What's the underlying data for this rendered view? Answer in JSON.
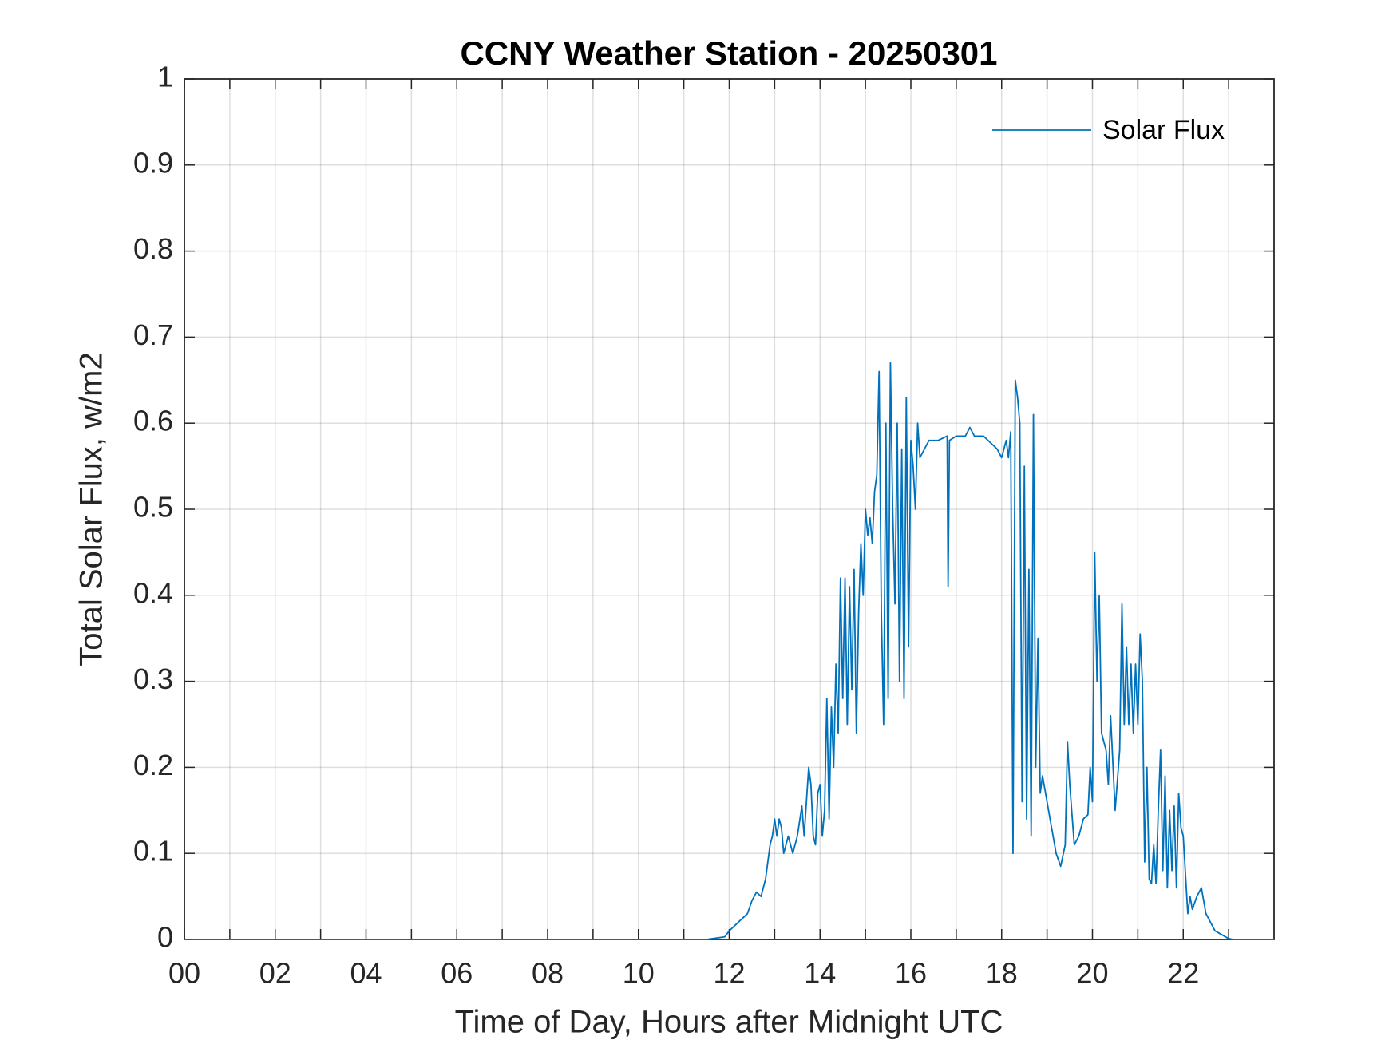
{
  "chart_data": {
    "type": "line",
    "title": "CCNY Weather Station - 20250301",
    "x_label": "Time of Day, Hours after Midnight UTC",
    "y_label": "Total Solar Flux, w/m2",
    "xlim": [
      0,
      24
    ],
    "ylim": [
      0,
      1
    ],
    "xticks": [
      {
        "value": 0,
        "label": "00"
      },
      {
        "value": 2,
        "label": "02"
      },
      {
        "value": 4,
        "label": "04"
      },
      {
        "value": 6,
        "label": "06"
      },
      {
        "value": 8,
        "label": "08"
      },
      {
        "value": 10,
        "label": "10"
      },
      {
        "value": 12,
        "label": "12"
      },
      {
        "value": 14,
        "label": "14"
      },
      {
        "value": 16,
        "label": "16"
      },
      {
        "value": 18,
        "label": "18"
      },
      {
        "value": 20,
        "label": "20"
      },
      {
        "value": 22,
        "label": "22"
      }
    ],
    "xminorticks": [
      1,
      3,
      5,
      7,
      9,
      11,
      13,
      15,
      17,
      19,
      21,
      23
    ],
    "yticks": [
      0,
      0.1,
      0.2,
      0.3,
      0.4,
      0.5,
      0.6,
      0.7,
      0.8,
      0.9,
      1
    ],
    "grid": true,
    "legend_position": "upper right",
    "x": [
      0,
      11.5,
      11.9,
      12.0,
      12.2,
      12.4,
      12.5,
      12.6,
      12.7,
      12.8,
      12.9,
      12.95,
      13.0,
      13.05,
      13.1,
      13.15,
      13.2,
      13.3,
      13.4,
      13.5,
      13.6,
      13.65,
      13.75,
      13.8,
      13.85,
      13.9,
      13.95,
      14.0,
      14.05,
      14.1,
      14.15,
      14.2,
      14.25,
      14.3,
      14.35,
      14.4,
      14.45,
      14.5,
      14.55,
      14.6,
      14.65,
      14.7,
      14.75,
      14.8,
      14.85,
      14.9,
      14.95,
      15.0,
      15.05,
      15.1,
      15.15,
      15.2,
      15.25,
      15.3,
      15.35,
      15.4,
      15.45,
      15.5,
      15.55,
      15.6,
      15.65,
      15.7,
      15.75,
      15.8,
      15.85,
      15.9,
      15.95,
      16.0,
      16.05,
      16.1,
      16.15,
      16.2,
      16.3,
      16.4,
      16.6,
      16.8,
      16.82,
      16.85,
      17.0,
      17.2,
      17.3,
      17.4,
      17.6,
      17.8,
      17.9,
      18.0,
      18.1,
      18.15,
      18.2,
      18.25,
      18.3,
      18.35,
      18.4,
      18.45,
      18.5,
      18.55,
      18.6,
      18.65,
      18.7,
      18.75,
      18.8,
      18.85,
      18.9,
      19.0,
      19.1,
      19.2,
      19.3,
      19.4,
      19.45,
      19.5,
      19.6,
      19.7,
      19.8,
      19.9,
      19.95,
      20.0,
      20.05,
      20.1,
      20.15,
      20.2,
      20.3,
      20.35,
      20.4,
      20.5,
      20.6,
      20.65,
      20.7,
      20.75,
      20.8,
      20.85,
      20.9,
      20.95,
      21.0,
      21.05,
      21.1,
      21.15,
      21.2,
      21.25,
      21.3,
      21.35,
      21.4,
      21.45,
      21.5,
      21.55,
      21.6,
      21.65,
      21.7,
      21.75,
      21.8,
      21.85,
      21.9,
      21.95,
      22.0,
      22.1,
      22.15,
      22.2,
      22.3,
      22.4,
      22.5,
      22.7,
      23.0,
      23.1,
      24
    ],
    "series": [
      {
        "name": "Solar Flux",
        "color": "#0072bd",
        "values": [
          0,
          0,
          0.003,
          0.01,
          0.02,
          0.03,
          0.045,
          0.055,
          0.05,
          0.07,
          0.11,
          0.12,
          0.14,
          0.12,
          0.14,
          0.13,
          0.1,
          0.12,
          0.1,
          0.12,
          0.155,
          0.12,
          0.2,
          0.18,
          0.12,
          0.11,
          0.17,
          0.18,
          0.12,
          0.15,
          0.28,
          0.14,
          0.27,
          0.2,
          0.32,
          0.24,
          0.42,
          0.28,
          0.42,
          0.25,
          0.41,
          0.29,
          0.43,
          0.24,
          0.38,
          0.46,
          0.4,
          0.5,
          0.47,
          0.49,
          0.46,
          0.52,
          0.54,
          0.66,
          0.38,
          0.25,
          0.6,
          0.28,
          0.67,
          0.5,
          0.39,
          0.6,
          0.3,
          0.57,
          0.28,
          0.63,
          0.34,
          0.58,
          0.55,
          0.5,
          0.6,
          0.56,
          0.57,
          0.58,
          0.58,
          0.585,
          0.41,
          0.58,
          0.585,
          0.585,
          0.595,
          0.585,
          0.585,
          0.575,
          0.57,
          0.56,
          0.58,
          0.56,
          0.59,
          0.1,
          0.65,
          0.63,
          0.6,
          0.16,
          0.55,
          0.14,
          0.43,
          0.12,
          0.61,
          0.2,
          0.35,
          0.17,
          0.19,
          0.16,
          0.13,
          0.1,
          0.085,
          0.11,
          0.23,
          0.18,
          0.11,
          0.12,
          0.14,
          0.145,
          0.2,
          0.16,
          0.45,
          0.3,
          0.4,
          0.24,
          0.22,
          0.18,
          0.26,
          0.15,
          0.22,
          0.39,
          0.25,
          0.34,
          0.25,
          0.32,
          0.24,
          0.32,
          0.25,
          0.355,
          0.3,
          0.09,
          0.2,
          0.07,
          0.065,
          0.11,
          0.065,
          0.15,
          0.22,
          0.08,
          0.19,
          0.06,
          0.15,
          0.08,
          0.155,
          0.06,
          0.17,
          0.13,
          0.12,
          0.03,
          0.05,
          0.035,
          0.05,
          0.06,
          0.03,
          0.01,
          0.001,
          0,
          0
        ]
      }
    ]
  }
}
